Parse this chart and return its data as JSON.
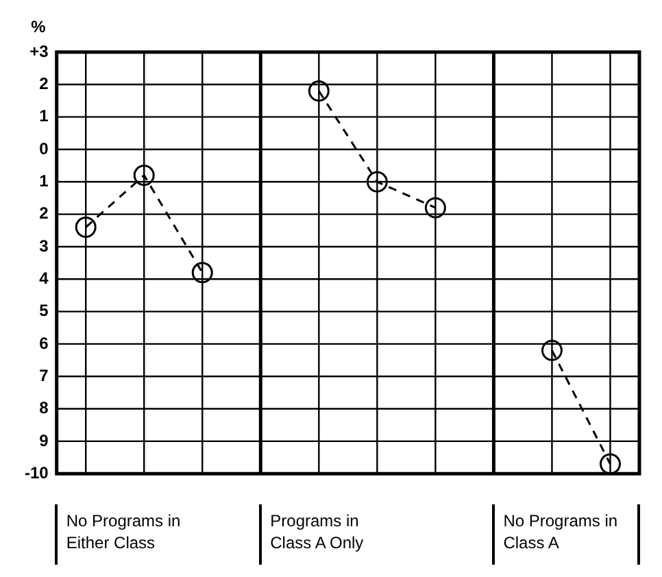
{
  "chart_data": {
    "type": "line",
    "ylabel": "%",
    "categories": [
      null,
      null,
      null,
      null,
      null,
      null,
      null,
      null,
      null,
      null
    ],
    "series": [
      {
        "color": "#000000",
        "values": [
          -2.4,
          -0.8,
          -3.8,
          null,
          1.8,
          -1.0,
          -1.8,
          null,
          -6.2,
          -9.7
        ]
      }
    ],
    "ylim": [
      -10,
      3
    ],
    "yticks": [
      {
        "value": 3,
        "label": "+3"
      },
      2,
      1,
      0,
      {
        "value": -1,
        "label": "1"
      },
      {
        "value": -2,
        "label": "2"
      },
      {
        "value": -3,
        "label": "3"
      },
      {
        "value": -4,
        "label": "4"
      },
      {
        "value": -5,
        "label": "5"
      },
      {
        "value": -6,
        "label": "6"
      },
      {
        "value": -7,
        "label": "7"
      },
      {
        "value": -8,
        "label": "8"
      },
      {
        "value": -9,
        "label": "9"
      },
      -10
    ],
    "annotations": [
      "No Programs in Either Class",
      "Programs in Class A Only",
      "No Programs in Class A"
    ],
    "grid": true,
    "legend": false,
    "marker": "circle",
    "line_style": "dashed"
  }
}
